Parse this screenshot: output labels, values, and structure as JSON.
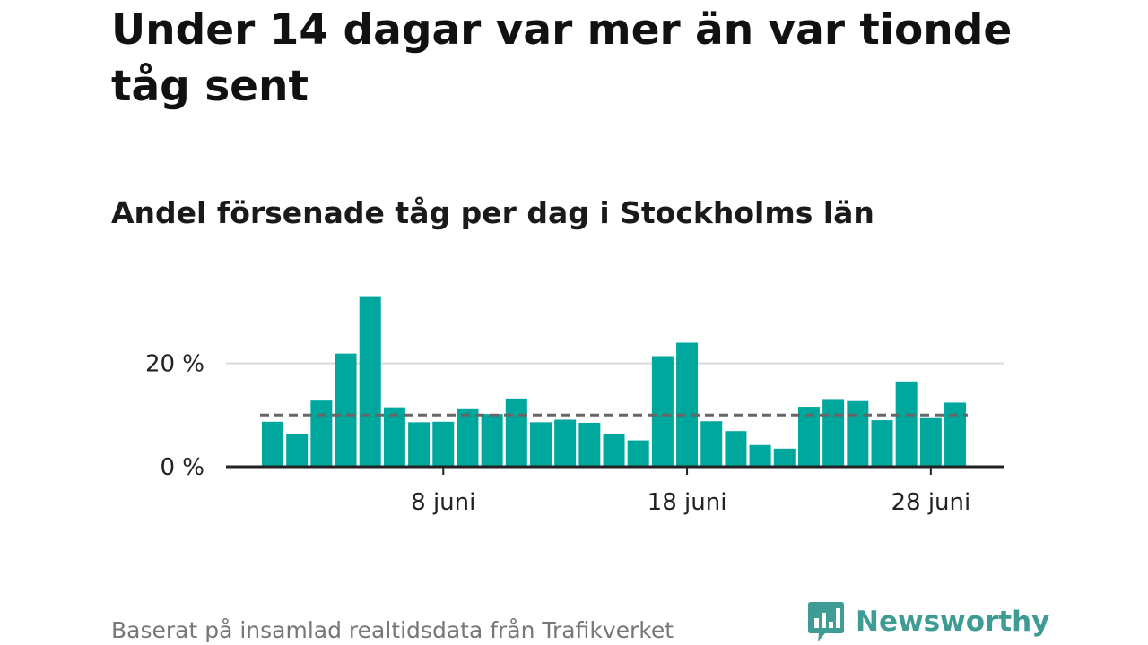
{
  "title": "Under 14 dagar var mer än var tionde tåg sent",
  "subtitle": "Andel försenade tåg per dag i Stockholms län",
  "source": "Baserat på insamlad realtidsdata från Trafikverket",
  "brand": {
    "name": "Newsworthy",
    "logo_icon": "bar-chart-bubble-icon",
    "color": "#3f9c94"
  },
  "colors": {
    "bar": "#00a79d",
    "average_line": "#666666",
    "grid": "#d9d9d9",
    "axis": "#222222"
  },
  "chart_data": {
    "type": "bar",
    "title": "Andel försenade tåg per dag i Stockholms län",
    "xlabel": "",
    "ylabel": "",
    "unit": "%",
    "categories": [
      "1 juni",
      "2 juni",
      "3 juni",
      "4 juni",
      "5 juni",
      "6 juni",
      "7 juni",
      "8 juni",
      "9 juni",
      "10 juni",
      "11 juni",
      "12 juni",
      "13 juni",
      "14 juni",
      "15 juni",
      "16 juni",
      "17 juni",
      "18 juni",
      "19 juni",
      "20 juni",
      "21 juni",
      "22 juni",
      "23 juni",
      "24 juni",
      "25 juni",
      "26 juni",
      "27 juni",
      "28 juni",
      "29 juni"
    ],
    "values": [
      8.7,
      6.4,
      12.8,
      21.9,
      33.0,
      11.5,
      8.6,
      8.7,
      11.3,
      10.2,
      13.2,
      8.6,
      9.1,
      8.5,
      6.4,
      5.1,
      21.4,
      24.0,
      8.8,
      6.9,
      4.2,
      3.5,
      11.6,
      13.1,
      12.7,
      9.0,
      16.5,
      9.4,
      12.4
    ],
    "average": 10.0,
    "ylim": [
      0,
      35
    ],
    "y_ticks": [
      {
        "value": 0,
        "label": "0 %"
      },
      {
        "value": 20,
        "label": "20 %"
      }
    ],
    "x_ticks": [
      {
        "category": "8 juni",
        "label": "8 juni"
      },
      {
        "category": "18 juni",
        "label": "18 juni"
      },
      {
        "category": "28 juni",
        "label": "28 juni"
      }
    ],
    "grid": true,
    "legend": "none"
  }
}
